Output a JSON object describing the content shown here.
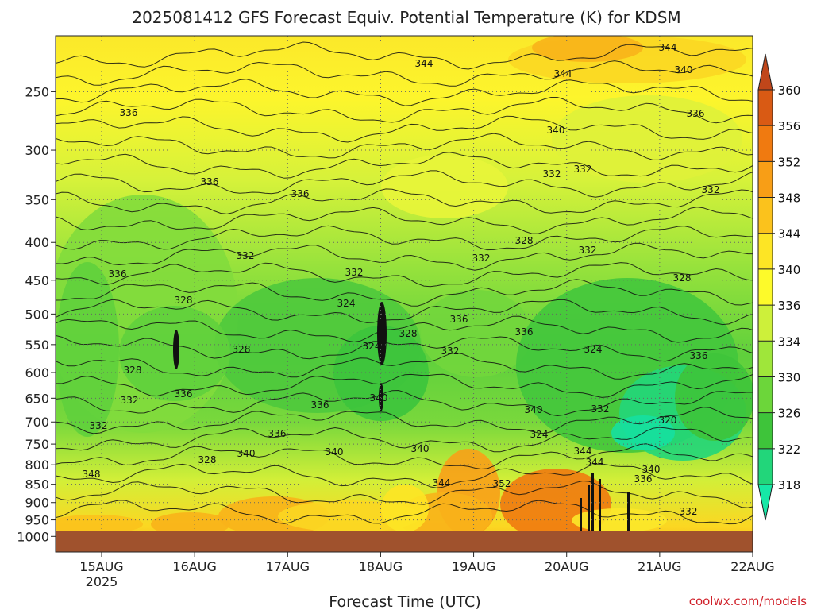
{
  "chart_data": {
    "type": "heatmap",
    "title": "2025081412 GFS Forecast Equiv. Potential Temperature (K) for KDSM",
    "xlabel": "Forecast Time (UTC)",
    "ylabel": "",
    "x_ticks": [
      "15AUG",
      "16AUG",
      "17AUG",
      "18AUG",
      "19AUG",
      "20AUG",
      "21AUG",
      "22AUG"
    ],
    "x_year_label": "2025",
    "y_ticks": [
      "250",
      "300",
      "350",
      "400",
      "450",
      "500",
      "550",
      "600",
      "650",
      "700",
      "750",
      "800",
      "850",
      "900",
      "950",
      "1000"
    ],
    "colorbar": {
      "labels": [
        "360",
        "356",
        "352",
        "348",
        "344",
        "340",
        "336",
        "334",
        "330",
        "326",
        "322",
        "318"
      ],
      "colors": [
        "#d95a14",
        "#f07a10",
        "#f89e16",
        "#fbc21c",
        "#fde525",
        "#fdfa2a",
        "#cdf03a",
        "#9fe63a",
        "#6cd63a",
        "#3ec43a",
        "#22d67a",
        "#16e8a6"
      ]
    },
    "contour_labels": [
      "344",
      "344",
      "344",
      "340",
      "336",
      "340",
      "336",
      "336",
      "332",
      "336",
      "332",
      "332",
      "336",
      "328",
      "332",
      "332",
      "332",
      "328",
      "332",
      "328",
      "324",
      "336",
      "328",
      "336",
      "324",
      "328",
      "324",
      "332",
      "336",
      "328",
      "332",
      "336",
      "320",
      "332",
      "336",
      "340",
      "340",
      "332",
      "336",
      "324",
      "328",
      "340",
      "344",
      "340",
      "340",
      "344",
      "340",
      "348",
      "344",
      "336",
      "352",
      "332"
    ],
    "ground_color": "#a0522d",
    "credit": "coolwx.com/models"
  }
}
